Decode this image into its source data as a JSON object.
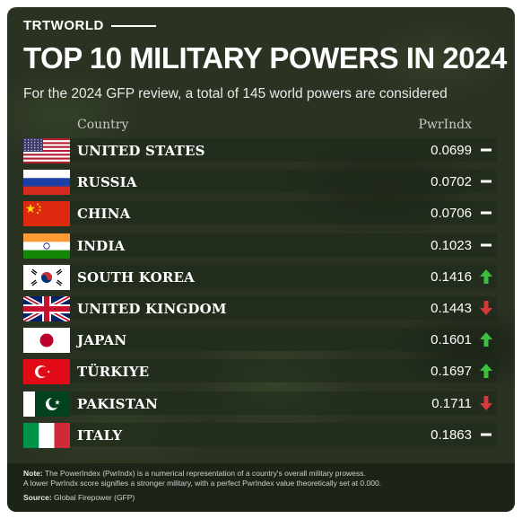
{
  "brand": "TRTWORLD",
  "title": "TOP 10 MILITARY POWERS IN 2024",
  "subtitle": "For the 2024 GFP review, a total of 145 world powers are considered",
  "columns": {
    "country": "Country",
    "index": "PwrIndx"
  },
  "countries": [
    {
      "rank": 1,
      "name": "UNITED STATES",
      "value": "0.0699",
      "trend": "same",
      "flag": "us-flag"
    },
    {
      "rank": 2,
      "name": "RUSSIA",
      "value": "0.0702",
      "trend": "same",
      "flag": "russia-flag"
    },
    {
      "rank": 3,
      "name": "CHINA",
      "value": "0.0706",
      "trend": "same",
      "flag": "china-flag"
    },
    {
      "rank": 4,
      "name": "INDIA",
      "value": "0.1023",
      "trend": "same",
      "flag": "india-flag"
    },
    {
      "rank": 5,
      "name": "SOUTH KOREA",
      "value": "0.1416",
      "trend": "up",
      "flag": "south-korea-flag"
    },
    {
      "rank": 6,
      "name": "UNITED KINGDOM",
      "value": "0.1443",
      "trend": "down",
      "flag": "uk-flag"
    },
    {
      "rank": 7,
      "name": "JAPAN",
      "value": "0.1601",
      "trend": "up",
      "flag": "japan-flag"
    },
    {
      "rank": 8,
      "name": "TÜRKIYE",
      "value": "0.1697",
      "trend": "up",
      "flag": "turkiye-flag"
    },
    {
      "rank": 9,
      "name": "PAKISTAN",
      "value": "0.1711",
      "trend": "down",
      "flag": "pakistan-flag"
    },
    {
      "rank": 10,
      "name": "ITALY",
      "value": "0.1863",
      "trend": "same",
      "flag": "italy-flag"
    }
  ],
  "colors": {
    "up": "#3fbf3f",
    "down": "#d9383a",
    "same": "#ffffff"
  },
  "note": {
    "label": "Note:",
    "line1": "The PowerIndex (PwrIndx) is a numerical representation of a country's overall military prowess.",
    "line2": "A lower PwrIndx score signifies a stronger military, with a perfect PwrIndex value theoretically set at 0.000."
  },
  "source": {
    "label": "Source:",
    "text": "Global Firepower (GFP)"
  }
}
